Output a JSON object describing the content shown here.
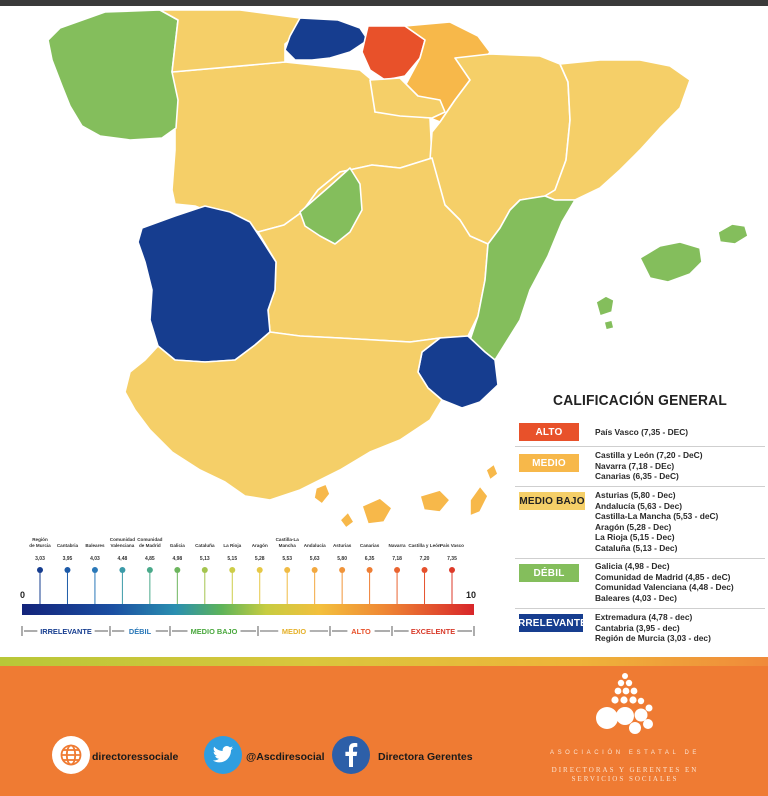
{
  "colors": {
    "alto": "#e8512a",
    "medio": "#f7b84a",
    "medio_bajo": "#f5cf68",
    "debil": "#84be5c",
    "irrelevante": "#163d8f",
    "footer": "#ef7b33"
  },
  "map": {
    "regions": [
      {
        "name": "Galicia",
        "level": "debil"
      },
      {
        "name": "Asturias",
        "level": "medio_bajo"
      },
      {
        "name": "Cantabria",
        "level": "irrelevante"
      },
      {
        "name": "País Vasco",
        "level": "alto"
      },
      {
        "name": "Navarra",
        "level": "medio"
      },
      {
        "name": "La Rioja",
        "level": "medio_bajo"
      },
      {
        "name": "Castilla y León",
        "level": "medio"
      },
      {
        "name": "Aragón",
        "level": "medio_bajo"
      },
      {
        "name": "Cataluña",
        "level": "medio_bajo"
      },
      {
        "name": "Comunidad de Madrid",
        "level": "debil"
      },
      {
        "name": "Castilla-La Mancha",
        "level": "medio_bajo"
      },
      {
        "name": "Extremadura",
        "level": "irrelevante"
      },
      {
        "name": "Comunidad Valenciana",
        "level": "debil"
      },
      {
        "name": "Baleares",
        "level": "debil"
      },
      {
        "name": "Región de Murcia",
        "level": "irrelevante"
      },
      {
        "name": "Andalucía",
        "level": "medio_bajo"
      },
      {
        "name": "Canarias",
        "level": "medio"
      }
    ]
  },
  "legend": {
    "title": "CALIFICACIÓN GENERAL",
    "groups": [
      {
        "label": "ALTO",
        "color": "#e8512a",
        "items": [
          "País Vasco (7,35 - DEC)"
        ]
      },
      {
        "label": "MEDIO",
        "color": "#f7b84a",
        "items": [
          "Castilla y León (7,20 - DeC)",
          "Navarra (7,18 - DEc)",
          "Canarias (6,35 - DeC)"
        ]
      },
      {
        "label": "MEDIO BAJO",
        "color": "#f5cf68",
        "text_dark": true,
        "items": [
          "Asturias (5,80 - Dec)",
          "Andalucía (5,63 - Dec)",
          "Castilla-La Mancha (5,53 - deC)",
          "Aragón (5,28 - Dec)",
          "La Rioja (5,15 - Dec)",
          "Cataluña (5,13 - Dec)"
        ]
      },
      {
        "label": "DÉBIL",
        "color": "#84be5c",
        "items": [
          "Galicia (4,98 - Dec)",
          "Comunidad de Madrid (4,85 - deC)",
          "Comunidad Valenciana (4,48 - Dec)",
          "Baleares (4,03 - Dec)"
        ]
      },
      {
        "label": "IRRELEVANTE",
        "color": "#163d8f",
        "items": [
          "Extremadura (4,78 - dec)",
          "Cantabria (3,95 - dec)",
          "Región de Murcia (3,03 - dec)"
        ]
      }
    ]
  },
  "scale": {
    "min_label": "0",
    "max_label": "10",
    "markers": [
      {
        "label": "Región de Murcia",
        "value": "3,03",
        "color": "#163d8f"
      },
      {
        "label": "Cantabria",
        "value": "3,95",
        "color": "#1d5aa8"
      },
      {
        "label": "Baleares",
        "value": "4,03",
        "color": "#2a78b8"
      },
      {
        "label": "Comunidad Valenciana",
        "value": "4,48",
        "color": "#3b9aa8"
      },
      {
        "label": "Comunidad de Madrid",
        "value": "4,85",
        "color": "#4aa98a"
      },
      {
        "label": "Galicia",
        "value": "4,98",
        "color": "#6db55e"
      },
      {
        "label": "Cataluña",
        "value": "5,13",
        "color": "#a4c44e"
      },
      {
        "label": "La Rioja",
        "value": "5,15",
        "color": "#cdcd48"
      },
      {
        "label": "Aragón",
        "value": "5,28",
        "color": "#e6c846"
      },
      {
        "label": "Castilla-La Mancha",
        "value": "5,53",
        "color": "#f0bb44"
      },
      {
        "label": "Andalucía",
        "value": "5,63",
        "color": "#f2a83f"
      },
      {
        "label": "Asturias",
        "value": "5,80",
        "color": "#f0943a"
      },
      {
        "label": "Canarias",
        "value": "6,35",
        "color": "#ee7e34"
      },
      {
        "label": "Navarra",
        "value": "7,18",
        "color": "#e96430"
      },
      {
        "label": "Castilla y León",
        "value": "7,20",
        "color": "#e5502c"
      },
      {
        "label": "País Vasco",
        "value": "7,35",
        "color": "#dd3a29"
      }
    ],
    "categories": [
      {
        "label": "IRRELEVANTE",
        "color": "#163d8f"
      },
      {
        "label": "DÉBIL",
        "color": "#2a78b8"
      },
      {
        "label": "MEDIO BAJO",
        "color": "#4aa83e"
      },
      {
        "label": "MEDIO",
        "color": "#e5b12a"
      },
      {
        "label": "ALTO",
        "color": "#e8512a"
      },
      {
        "label": "EXCELENTE",
        "color": "#d83a2a"
      }
    ]
  },
  "footer": {
    "website": "directoressociale",
    "twitter": "@Ascdiresocial",
    "facebook": "Directora Gerentes",
    "org_line1": "ASOCIACIÓN ESTATAL DE",
    "org_line2": "DIRECTORAS Y GERENTES EN",
    "org_line3": "SERVICIOS SOCIALES"
  }
}
